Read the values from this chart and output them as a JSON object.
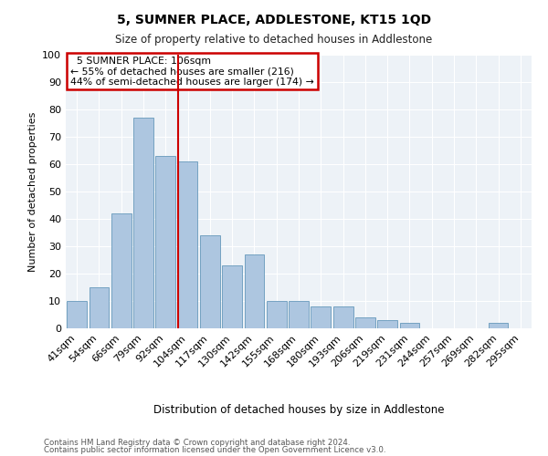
{
  "title": "5, SUMNER PLACE, ADDLESTONE, KT15 1QD",
  "subtitle": "Size of property relative to detached houses in Addlestone",
  "xlabel": "Distribution of detached houses by size in Addlestone",
  "ylabel": "Number of detached properties",
  "categories": [
    "41sqm",
    "54sqm",
    "66sqm",
    "79sqm",
    "92sqm",
    "104sqm",
    "117sqm",
    "130sqm",
    "142sqm",
    "155sqm",
    "168sqm",
    "180sqm",
    "193sqm",
    "206sqm",
    "219sqm",
    "231sqm",
    "244sqm",
    "257sqm",
    "269sqm",
    "282sqm",
    "295sqm"
  ],
  "values": [
    10,
    15,
    42,
    77,
    63,
    61,
    34,
    23,
    27,
    10,
    10,
    8,
    8,
    4,
    3,
    2,
    0,
    0,
    0,
    2,
    0
  ],
  "bar_color": "#adc6e0",
  "bar_edge_color": "#6699bb",
  "background_color": "#edf2f7",
  "grid_color": "#ffffff",
  "vline_color": "#cc0000",
  "annotation_box_color": "#cc0000",
  "ylim": [
    0,
    100
  ],
  "footer_line1": "Contains HM Land Registry data © Crown copyright and database right 2024.",
  "footer_line2": "Contains public sector information licensed under the Open Government Licence v3.0."
}
